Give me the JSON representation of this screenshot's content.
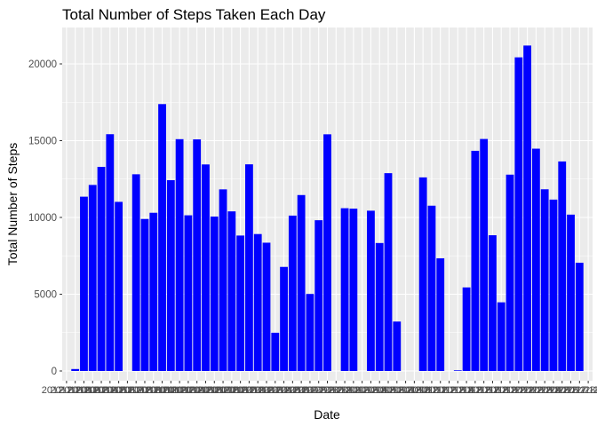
{
  "chart_data": {
    "type": "bar",
    "title": "Total Number of Steps Taken Each Day",
    "xlabel": "Date",
    "ylabel": "Total Number of Steps",
    "ylim": [
      0,
      22000
    ],
    "yticks": [
      0,
      5000,
      10000,
      15000,
      20000
    ],
    "grid": true,
    "bar_color": "#0000ff",
    "panel_color": "#ebebeb",
    "gridline_color": "#ffffff",
    "categories": [
      "2012-10-01",
      "2012-10-02",
      "2012-10-03",
      "2012-10-04",
      "2012-10-05",
      "2012-10-06",
      "2012-10-07",
      "2012-10-08",
      "2012-10-09",
      "2012-10-10",
      "2012-10-11",
      "2012-10-12",
      "2012-10-13",
      "2012-10-14",
      "2012-10-15",
      "2012-10-16",
      "2012-10-17",
      "2012-10-18",
      "2012-10-19",
      "2012-10-20",
      "2012-10-21",
      "2012-10-22",
      "2012-10-23",
      "2012-10-24",
      "2012-10-25",
      "2012-10-26",
      "2012-10-27",
      "2012-10-28",
      "2012-10-29",
      "2012-10-30",
      "2012-10-31",
      "2012-11-01",
      "2012-11-02",
      "2012-11-03",
      "2012-11-04",
      "2012-11-05",
      "2012-11-06",
      "2012-11-07",
      "2012-11-08",
      "2012-11-09",
      "2012-11-10",
      "2012-11-11",
      "2012-11-12",
      "2012-11-13",
      "2012-11-14",
      "2012-11-15",
      "2012-11-16",
      "2012-11-17",
      "2012-11-18",
      "2012-11-19",
      "2012-11-20",
      "2012-11-21",
      "2012-11-22",
      "2012-11-23",
      "2012-11-24",
      "2012-11-25",
      "2012-11-26",
      "2012-11-27",
      "2012-11-28",
      "2012-11-29",
      "2012-11-30"
    ],
    "values": [
      0,
      126,
      11352,
      12116,
      13294,
      15420,
      11015,
      0,
      12811,
      9900,
      10304,
      17382,
      12426,
      15098,
      10139,
      15084,
      13452,
      10056,
      11829,
      10395,
      8821,
      13460,
      8918,
      8355,
      2492,
      6778,
      10119,
      11458,
      5018,
      9819,
      15414,
      0,
      10600,
      10571,
      0,
      10439,
      8334,
      12883,
      3219,
      0,
      0,
      12608,
      10765,
      7336,
      0,
      41,
      5441,
      14339,
      15110,
      8841,
      4472,
      12787,
      20427,
      21194,
      14478,
      11834,
      11162,
      13646,
      10183,
      7047,
      0
    ]
  }
}
